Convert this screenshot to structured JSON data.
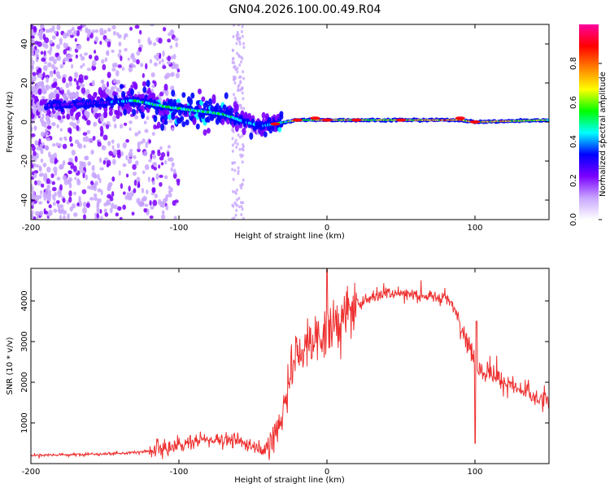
{
  "title": "GN04.2026.100.00.49.R04",
  "chart_data": [
    {
      "type": "heatmap",
      "xlabel": "Height of straight line (km)",
      "ylabel": "Frequency (Hz)",
      "xlim": [
        -200,
        150
      ],
      "ylim": [
        -50,
        50
      ],
      "xticks": [
        -200,
        -100,
        0,
        100
      ],
      "yticks": [
        -40,
        -20,
        0,
        20,
        40
      ],
      "colorbar": {
        "label": "Normalized spectral amplitude",
        "range": [
          0,
          1
        ],
        "ticks": [
          "0.0",
          "0.2",
          "0.4",
          "0.6",
          "0.8"
        ],
        "colors": [
          "#ffffff",
          "#c8a6ff",
          "#7b00ff",
          "#0000ff",
          "#00ffff",
          "#00ff00",
          "#ffff00",
          "#ff8000",
          "#ff0000",
          "#ff00a0"
        ]
      },
      "ridge": {
        "x": [
          -200,
          -175,
          -150,
          -130,
          -110,
          -90,
          -70,
          -55,
          -45,
          -35,
          -20,
          -10,
          0,
          20,
          50,
          90,
          100,
          150
        ],
        "freq": [
          8,
          9,
          10,
          11,
          8,
          6,
          4,
          0,
          -2,
          -1,
          1,
          1,
          1,
          1,
          1,
          1,
          0,
          1
        ],
        "amplitude": [
          0.25,
          0.25,
          0.3,
          0.45,
          0.5,
          0.5,
          0.5,
          0.35,
          0.35,
          0.45,
          0.6,
          0.6,
          0.75,
          0.6,
          0.6,
          0.8,
          0.7,
          0.6
        ]
      }
    },
    {
      "type": "line",
      "xlabel": "Height of straight line (km)",
      "ylabel": "SNR (10 * v/v)",
      "xlim": [
        -200,
        150
      ],
      "ylim": [
        0,
        4800
      ],
      "xticks": [
        -200,
        -100,
        0,
        100
      ],
      "yticks": [
        1000,
        2000,
        3000,
        4000
      ],
      "color": "#ee3030",
      "series": [
        {
          "x": [
            -200,
            -180,
            -160,
            -140,
            -120,
            -110,
            -100,
            -90,
            -80,
            -70,
            -60,
            -50,
            -40,
            -30,
            -25,
            -20,
            -15,
            -10,
            -5,
            0,
            5,
            10,
            20,
            30,
            40,
            50,
            60,
            70,
            80,
            88,
            95,
            100,
            110,
            120,
            130,
            140,
            150
          ],
          "y": [
            200,
            220,
            230,
            250,
            300,
            350,
            450,
            550,
            600,
            600,
            550,
            450,
            350,
            1200,
            2200,
            2700,
            2900,
            3000,
            3200,
            3200,
            3400,
            3600,
            3900,
            4100,
            4200,
            4200,
            4150,
            4100,
            4100,
            3700,
            3000,
            2500,
            2200,
            2000,
            1800,
            1600,
            1500
          ]
        }
      ]
    }
  ]
}
